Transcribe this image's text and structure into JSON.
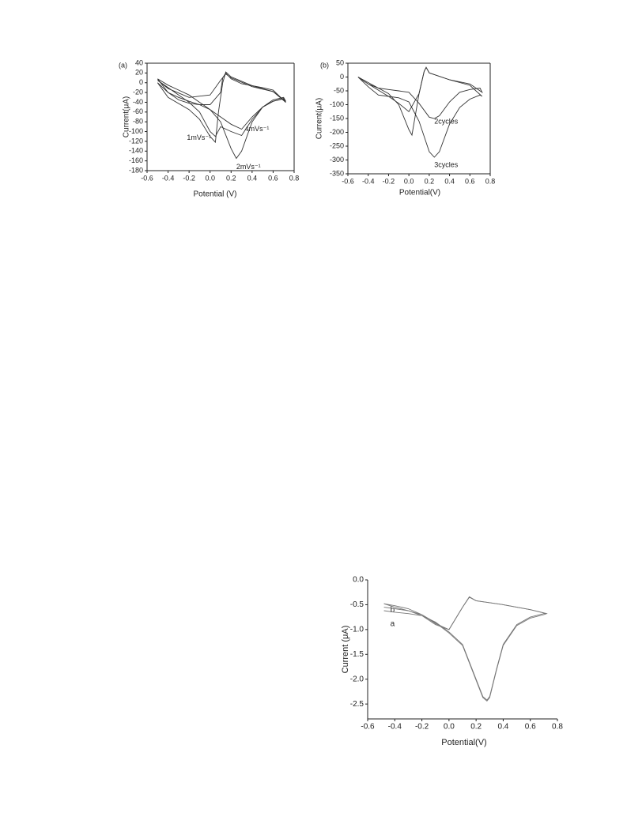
{
  "chart_data": [
    {
      "type": "line",
      "panel_label": "(a)",
      "x_label": "Potential (V)",
      "y_label": "Current(μA)",
      "xlim": [
        -0.6,
        0.8
      ],
      "xticks": [
        -0.6,
        -0.4,
        -0.2,
        {
          "value": 0,
          "label": "0.0"
        },
        0.2,
        0.4,
        0.6,
        0.8
      ],
      "ylim": [
        -180,
        40
      ],
      "yticks": [
        -180,
        -160,
        -140,
        -120,
        -100,
        -80,
        -60,
        -40,
        -20,
        0,
        20,
        40
      ],
      "series": [
        {
          "name": "4mVs⁻¹",
          "color": "#333333",
          "x": [
            -0.5,
            -0.4,
            -0.3,
            -0.2,
            -0.1,
            0.0,
            0.1,
            0.2,
            0.3,
            0.4,
            0.5,
            0.6,
            0.7,
            0.72,
            0.6,
            0.5,
            0.4,
            0.3,
            0.2,
            0.15,
            0.12,
            0.1,
            0.0,
            -0.1,
            -0.2,
            -0.3,
            -0.4,
            -0.5
          ],
          "values": [
            8,
            -5,
            -15,
            -25,
            -40,
            -55,
            -70,
            -85,
            -95,
            -70,
            -50,
            -38,
            -33,
            -40,
            -15,
            -10,
            -6,
            -2,
            8,
            20,
            10,
            -20,
            -45,
            -45,
            -42,
            -35,
            -20,
            8
          ]
        },
        {
          "name": "1mVs⁻¹",
          "color": "#333333",
          "x": [
            -0.5,
            -0.4,
            -0.3,
            -0.2,
            -0.1,
            0.0,
            0.05,
            0.1,
            0.2,
            0.3,
            0.4,
            0.5,
            0.6,
            0.7,
            0.72,
            0.6,
            0.4,
            0.2,
            0.15,
            0.1,
            0.0,
            -0.2,
            -0.4,
            -0.5
          ],
          "values": [
            5,
            -10,
            -25,
            -40,
            -60,
            -100,
            -110,
            -90,
            -100,
            -108,
            -75,
            -50,
            -38,
            -32,
            -40,
            -18,
            -8,
            10,
            18,
            5,
            -25,
            -30,
            -12,
            5
          ]
        },
        {
          "name": "2mVs⁻¹",
          "color": "#333333",
          "x": [
            -0.5,
            -0.4,
            -0.3,
            -0.2,
            -0.1,
            0.0,
            0.1,
            0.2,
            0.25,
            0.3,
            0.4,
            0.5,
            0.6,
            0.7,
            0.72,
            0.6,
            0.4,
            0.2,
            0.15,
            0.12,
            0.08,
            0.05,
            0.0,
            -0.1,
            -0.2,
            -0.4,
            -0.5
          ],
          "values": [
            0,
            -20,
            -30,
            -38,
            -45,
            -55,
            -80,
            -135,
            -155,
            -140,
            -80,
            -50,
            -35,
            -30,
            -38,
            -18,
            -6,
            12,
            22,
            0,
            -60,
            -122,
            -110,
            -75,
            -55,
            -30,
            0
          ]
        }
      ]
    },
    {
      "type": "line",
      "panel_label": "(b)",
      "x_label": "Potential(V)",
      "y_label": "Current(μA)",
      "xlim": [
        -0.6,
        0.8
      ],
      "xticks": [
        -0.6,
        -0.4,
        -0.2,
        {
          "value": 0,
          "label": "0.0"
        },
        0.2,
        0.4,
        0.6,
        0.8
      ],
      "ylim": [
        -350,
        50
      ],
      "yticks": [
        -350,
        -300,
        -250,
        -200,
        -150,
        -100,
        -50,
        0,
        50
      ],
      "series": [
        {
          "name": "2cycles",
          "color": "#333333",
          "x": [
            -0.5,
            -0.4,
            -0.3,
            -0.2,
            -0.1,
            0.0,
            0.1,
            0.2,
            0.25,
            0.3,
            0.4,
            0.5,
            0.6,
            0.7,
            0.72,
            0.6,
            0.4,
            0.2,
            0.17,
            0.15,
            0.1,
            0.0,
            -0.1,
            -0.2,
            -0.4,
            -0.5
          ],
          "values": [
            0,
            -25,
            -40,
            -45,
            -50,
            -55,
            -95,
            -145,
            -150,
            -140,
            -90,
            -55,
            -45,
            -40,
            -55,
            -25,
            -10,
            15,
            35,
            20,
            -60,
            -125,
            -95,
            -70,
            -25,
            0
          ]
        },
        {
          "name": "3cycles",
          "color": "#333333",
          "x": [
            -0.5,
            -0.4,
            -0.3,
            -0.2,
            -0.1,
            0.0,
            0.1,
            0.2,
            0.25,
            0.3,
            0.4,
            0.5,
            0.6,
            0.7,
            0.72,
            0.6,
            0.4,
            0.2,
            0.17,
            0.15,
            0.1,
            0.03,
            0.0,
            -0.1,
            -0.2,
            -0.4,
            -0.5
          ],
          "values": [
            0,
            -35,
            -65,
            -70,
            -75,
            -90,
            -160,
            -270,
            -290,
            -270,
            -170,
            -110,
            -80,
            -65,
            -70,
            -30,
            -10,
            15,
            35,
            20,
            -60,
            -210,
            -190,
            -100,
            -60,
            -20,
            0
          ]
        }
      ]
    },
    {
      "type": "line",
      "x_label": "Potential(V)",
      "y_label": "Current (μA)",
      "xlim": [
        -0.6,
        0.8
      ],
      "xticks": [
        -0.6,
        -0.4,
        -0.2,
        {
          "value": 0,
          "label": "0.0"
        },
        0.2,
        0.4,
        0.6,
        0.8
      ],
      "ylim": [
        -2.8,
        0
      ],
      "yticks": [
        {
          "value": 0,
          "label": "0.0"
        },
        -0.5,
        {
          "value": -1,
          "label": "-1.0"
        },
        -1.5,
        {
          "value": -2,
          "label": "-2.0"
        },
        -2.5
      ],
      "series": [
        {
          "name": "b",
          "color": "#777777",
          "x": [
            -0.48,
            -0.4,
            -0.3,
            -0.2,
            -0.1,
            0.0,
            0.02,
            0.1,
            0.2,
            0.25,
            0.28,
            0.3,
            0.35,
            0.4,
            0.5,
            0.6,
            0.7,
            0.72,
            0.6,
            0.4,
            0.2,
            0.15,
            0.1,
            0.0,
            -0.1,
            -0.2,
            -0.3,
            -0.4,
            -0.48
          ],
          "values": [
            -0.48,
            -0.55,
            -0.62,
            -0.7,
            -0.86,
            -1.07,
            -1.12,
            -1.32,
            -2.02,
            -2.37,
            -2.44,
            -2.37,
            -1.82,
            -1.32,
            -0.92,
            -0.77,
            -0.7,
            -0.68,
            -0.6,
            -0.5,
            -0.42,
            -0.34,
            -0.55,
            -1.0,
            -0.88,
            -0.7,
            -0.58,
            -0.52,
            -0.48
          ]
        },
        {
          "name": "a",
          "color": "#777777",
          "x": [
            -0.48,
            -0.4,
            -0.3,
            -0.2,
            -0.1,
            0.0,
            0.02,
            0.1,
            0.2,
            0.25,
            0.28,
            0.3,
            0.35,
            0.4,
            0.5,
            0.6,
            0.7,
            0.72,
            0.6,
            0.4,
            0.2,
            0.15,
            0.1,
            0.0,
            -0.1,
            -0.2,
            -0.3,
            -0.4,
            -0.48
          ],
          "values": [
            -0.62,
            -0.65,
            -0.68,
            -0.72,
            -0.85,
            -1.05,
            -1.1,
            -1.3,
            -2.0,
            -2.35,
            -2.42,
            -2.35,
            -1.8,
            -1.3,
            -0.9,
            -0.75,
            -0.68,
            -0.68,
            -0.6,
            -0.5,
            -0.42,
            -0.35,
            -0.55,
            -1.0,
            -0.9,
            -0.72,
            -0.62,
            -0.58,
            -0.55
          ]
        }
      ]
    }
  ]
}
